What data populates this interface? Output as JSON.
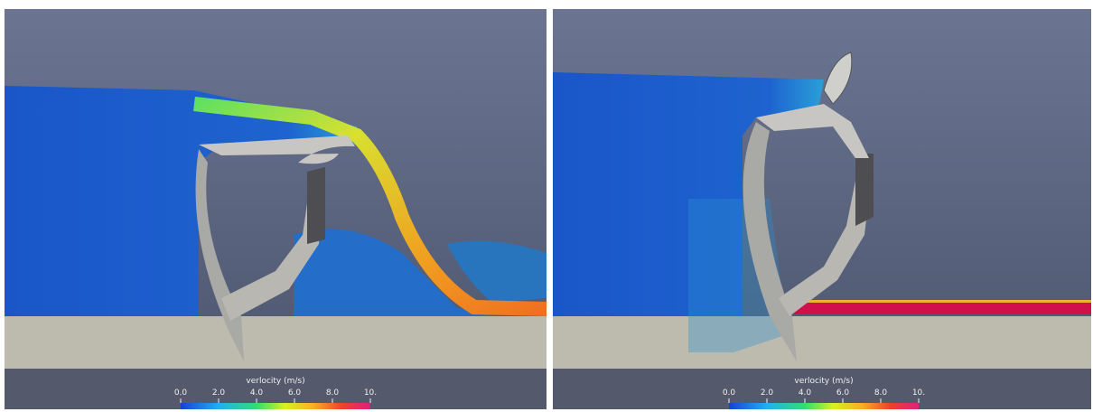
{
  "panels": [
    {
      "colorbar": {
        "label": "verlocity (m/s)",
        "ticks": [
          "0.0",
          "2.0",
          "4.0",
          "6.0",
          "8.0",
          "10."
        ]
      }
    },
    {
      "colorbar": {
        "label": "verlocity (m/s)",
        "ticks": [
          "0.0",
          "2.0",
          "4.0",
          "6.0",
          "8.0",
          "10."
        ]
      }
    }
  ]
}
